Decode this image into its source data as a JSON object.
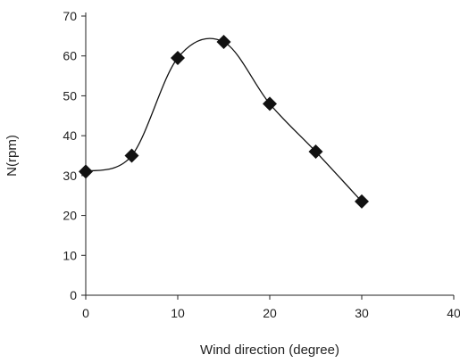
{
  "chart_data": {
    "type": "scatter",
    "title": "",
    "xlabel": "Wind direction (degree)",
    "ylabel": "N(rpm)",
    "xlim": [
      0,
      40
    ],
    "ylim": [
      0,
      70
    ],
    "x_ticks": [
      "0",
      "10",
      "20",
      "30",
      "40"
    ],
    "y_ticks": [
      "0",
      "10",
      "20",
      "30",
      "40",
      "50",
      "60",
      "70"
    ],
    "grid": false,
    "legend": "none",
    "marker": "diamond",
    "smooth_line": true,
    "series": [
      {
        "x": [
          0,
          5,
          10,
          15,
          20,
          25,
          30
        ],
        "y": [
          31,
          35,
          59.5,
          63.5,
          48,
          36,
          23.5
        ]
      }
    ],
    "colors": {
      "marker": "#111111",
      "line": "#111111",
      "axis": "#222222"
    }
  }
}
